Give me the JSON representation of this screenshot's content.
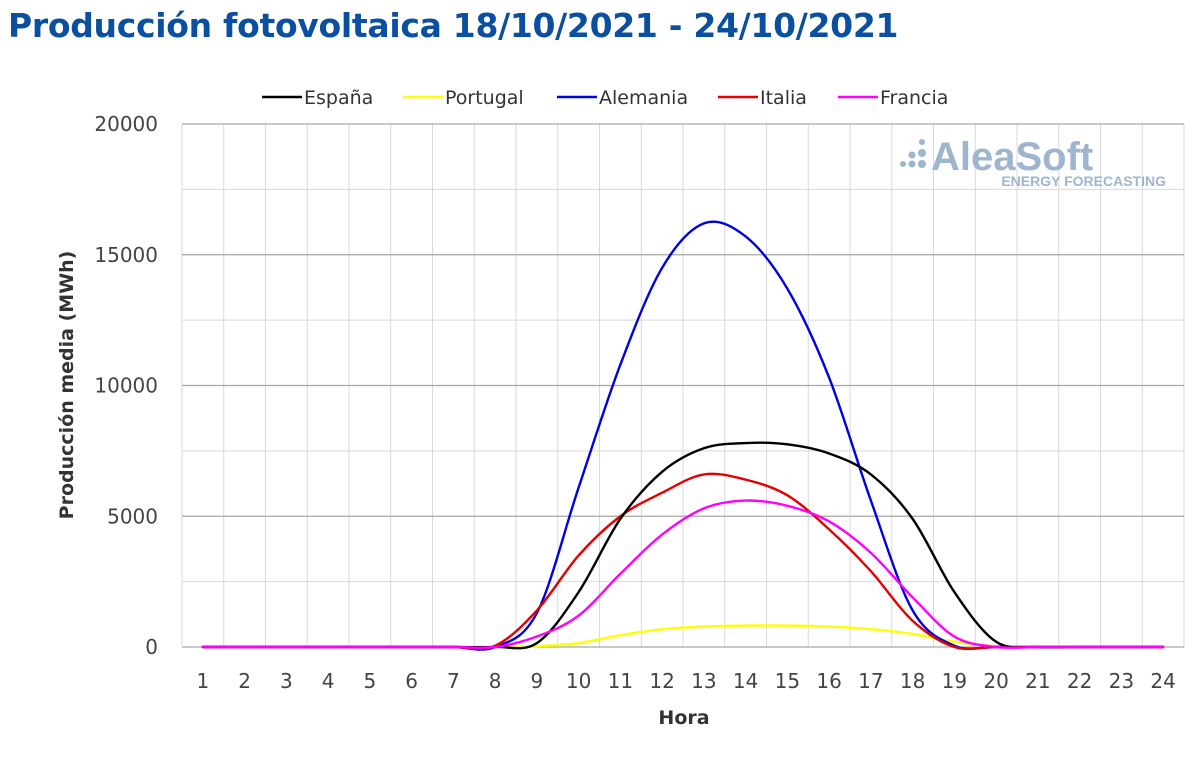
{
  "header": {
    "title": "Producción fotovoltaica 18/10/2021 - 24/10/2021"
  },
  "logo": {
    "main": "AleaSoft",
    "sub": "ENERGY FORECASTING",
    "color": "#9fb5cf"
  },
  "chart_data": {
    "type": "line",
    "title": "Producción fotovoltaica 18/10/2021 - 24/10/2021",
    "xlabel": "Hora",
    "ylabel": "Producción media (MWh)",
    "ylim": [
      0,
      20000
    ],
    "yticks": [
      0,
      5000,
      10000,
      15000,
      20000
    ],
    "grid": true,
    "legend_position": "top",
    "x": [
      1,
      2,
      3,
      4,
      5,
      6,
      7,
      8,
      9,
      10,
      11,
      12,
      13,
      14,
      15,
      16,
      17,
      18,
      19,
      20,
      21,
      22,
      23,
      24
    ],
    "series": [
      {
        "name": "España",
        "color": "#000000",
        "values": [
          0,
          0,
          0,
          0,
          0,
          0,
          0,
          0,
          150,
          2100,
          4900,
          6700,
          7600,
          7800,
          7750,
          7400,
          6600,
          4900,
          2100,
          200,
          0,
          0,
          0,
          0
        ]
      },
      {
        "name": "Portugal",
        "color": "#ffff00",
        "values": [
          0,
          0,
          0,
          0,
          0,
          0,
          0,
          0,
          30,
          150,
          450,
          680,
          780,
          820,
          820,
          780,
          680,
          500,
          200,
          30,
          0,
          0,
          0,
          0
        ]
      },
      {
        "name": "Alemania",
        "color": "#0000e6",
        "values": [
          0,
          0,
          0,
          0,
          0,
          0,
          0,
          0,
          1300,
          6100,
          10800,
          14500,
          16200,
          15700,
          13700,
          10300,
          5600,
          1400,
          50,
          0,
          0,
          0,
          0,
          0
        ]
      },
      {
        "name": "Italia",
        "color": "#e60000",
        "values": [
          0,
          0,
          0,
          0,
          0,
          0,
          0,
          50,
          1400,
          3500,
          5000,
          5900,
          6600,
          6400,
          5800,
          4500,
          2900,
          1000,
          0,
          0,
          0,
          0,
          0,
          0
        ]
      },
      {
        "name": "Francia",
        "color": "#ff00ff",
        "values": [
          0,
          0,
          0,
          0,
          0,
          0,
          0,
          0,
          400,
          1200,
          2800,
          4300,
          5300,
          5600,
          5400,
          4800,
          3600,
          1900,
          400,
          0,
          0,
          0,
          0,
          0
        ]
      }
    ]
  }
}
